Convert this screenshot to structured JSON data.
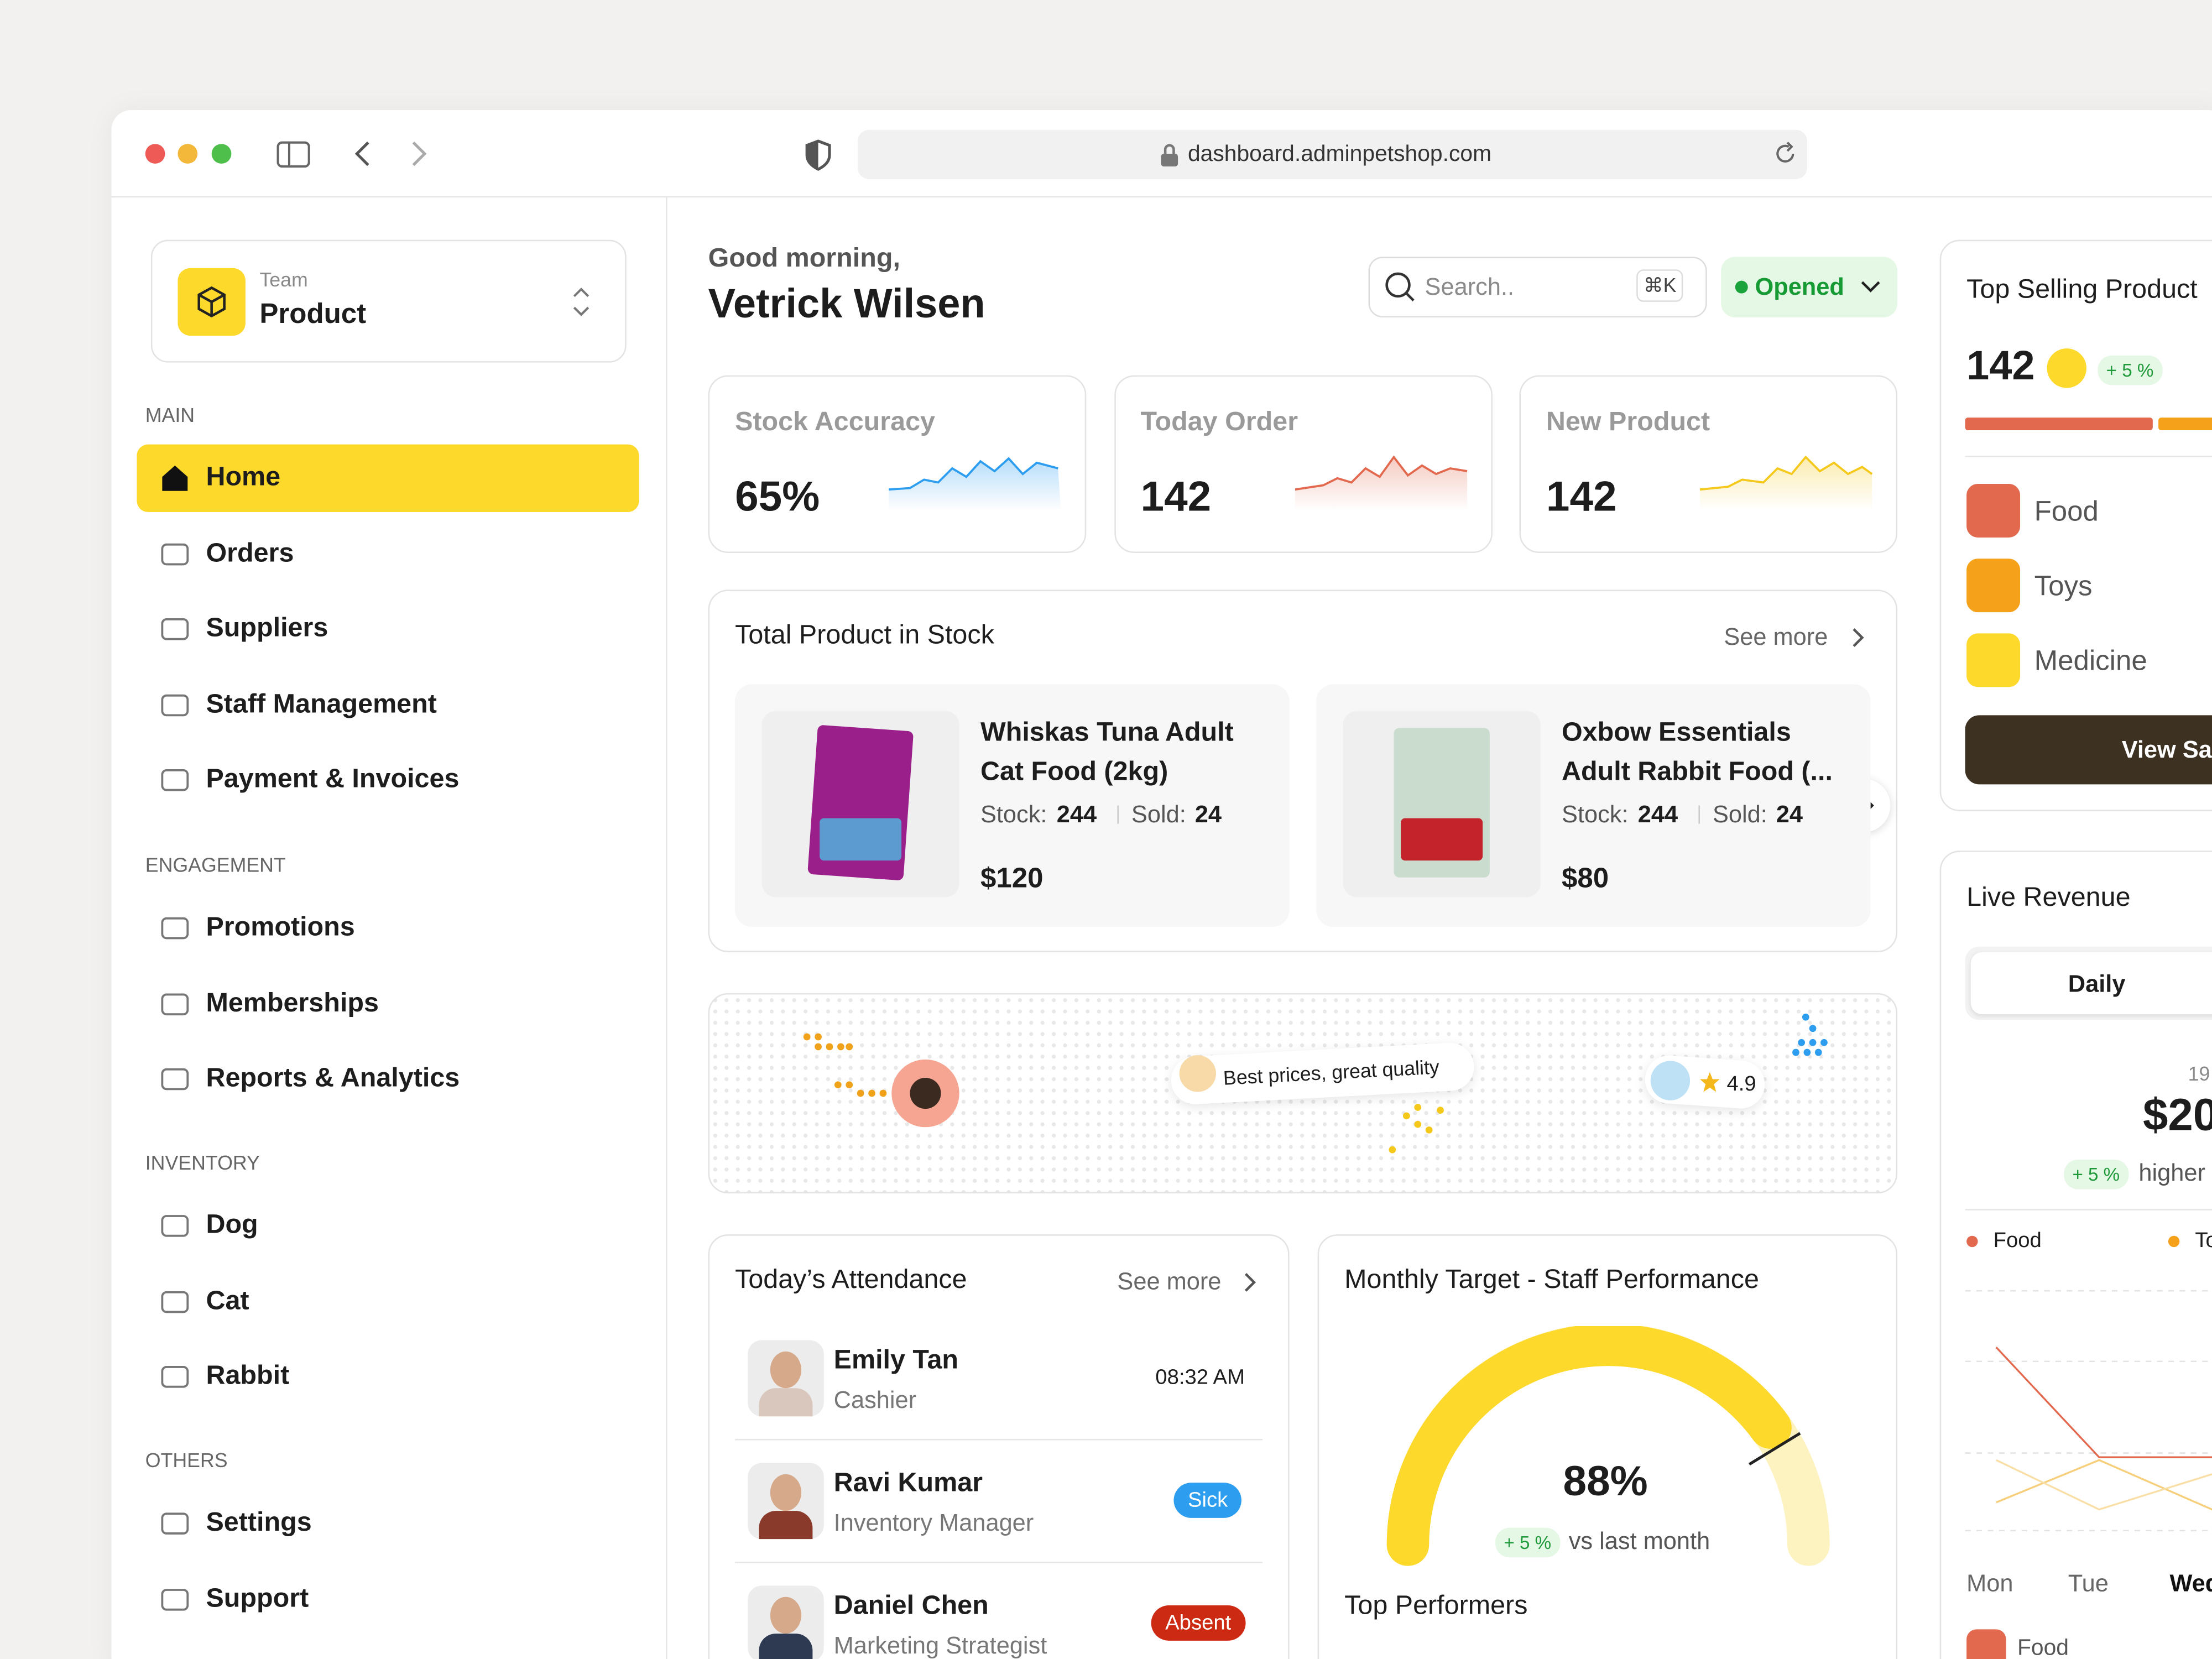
{
  "browser": {
    "url": "dashboard.adminpetshop.com"
  },
  "sidebar": {
    "team_label": "Team",
    "team_name": "Product",
    "sections": [
      {
        "title": "MAIN",
        "items": [
          "Home",
          "Orders",
          "Suppliers",
          "Staff Management",
          "Payment & Invoices"
        ]
      },
      {
        "title": "ENGAGEMENT",
        "items": [
          "Promotions",
          "Memberships",
          "Reports & Analytics"
        ]
      },
      {
        "title": "INVENTORY",
        "items": [
          "Dog",
          "Cat",
          "Rabbit"
        ]
      },
      {
        "title": "OTHERS",
        "items": [
          "Settings",
          "Support"
        ]
      }
    ]
  },
  "header": {
    "greeting": "Good morning,",
    "name": "Vetrick Wilsen",
    "search": "Search..",
    "shortcut": "⌘K",
    "status": "Opened"
  },
  "stats": [
    {
      "label": "Stock Accuracy",
      "value": "65%"
    },
    {
      "label": "Today Order",
      "value": "142"
    },
    {
      "label": "New Product",
      "value": "142"
    }
  ],
  "stock": {
    "title": "Total Product in Stock",
    "see_more": "See more",
    "products": [
      {
        "name": "Whiskas Tuna Adult Cat Food (2kg)",
        "stock_label": "Stock:",
        "stock": "244",
        "sold_label": "Sold:",
        "sold": "24",
        "price": "$120"
      },
      {
        "name": "Oxbow Essentials Adult Rabbit Food (...",
        "stock_label": "Stock:",
        "stock": "244",
        "sold_label": "Sold:",
        "sold": "24",
        "price": "$80"
      }
    ]
  },
  "map": {
    "review": "Best prices, great quality",
    "rating": "4.9"
  },
  "attendance": {
    "title": "Today’s Attendance",
    "see_more": "See more",
    "people": [
      {
        "name": "Emily Tan",
        "role": "Cashier",
        "status": "08:32 AM"
      },
      {
        "name": "Ravi Kumar",
        "role": "Inventory Manager",
        "status": "Sick"
      },
      {
        "name": "Daniel Chen",
        "role": "Marketing Strategist",
        "status": "Absent"
      }
    ]
  },
  "target": {
    "title": "Monthly Target - Staff Performance",
    "value": "88%",
    "change": "+ 5 %",
    "compare": "vs last month",
    "performers": "Top Performers"
  },
  "top_selling": {
    "title": "Top Selling Product",
    "value": "142",
    "change": "+ 5 %",
    "categories": [
      "Food",
      "Toys",
      "Medicine"
    ],
    "button": "View Sa"
  },
  "revenue": {
    "title": "Live Revenue",
    "tab": "Daily",
    "date": "19",
    "amount": "$20",
    "change": "+ 5 %",
    "note": "higher",
    "legend": [
      "Food",
      "To"
    ],
    "days": [
      "Mon",
      "Tue",
      "Wed"
    ],
    "footer": "Food"
  }
}
